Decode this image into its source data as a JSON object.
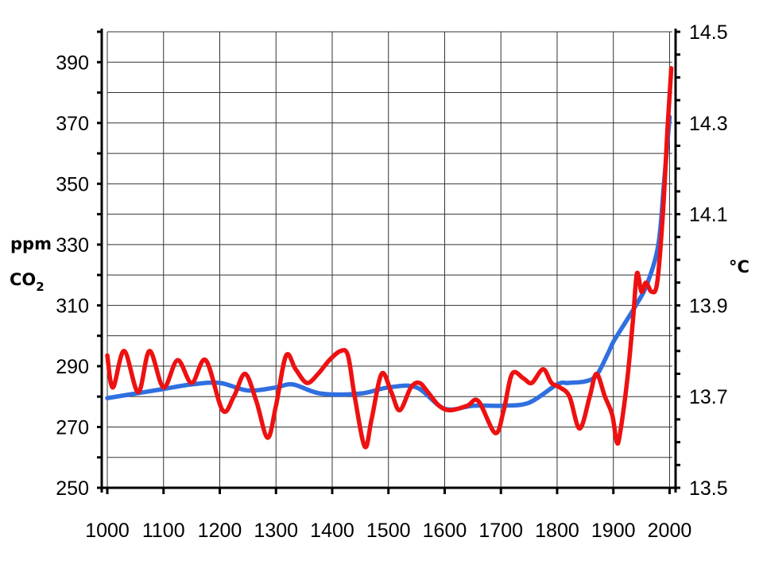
{
  "chart_data": {
    "type": "line",
    "xlabel": "",
    "x_ticks": [
      1000,
      1100,
      1200,
      1300,
      1400,
      1500,
      1600,
      1700,
      1800,
      1900,
      2000
    ],
    "xlim": [
      1000,
      2005
    ],
    "left_axis": {
      "label_line1": "ppm",
      "label_line2_main": "CO",
      "label_line2_sub": "2",
      "ticks": [
        250,
        270,
        290,
        310,
        330,
        350,
        370,
        390
      ],
      "ylim": [
        250,
        400
      ]
    },
    "right_axis": {
      "label": "°C",
      "ticks": [
        13.5,
        13.7,
        13.9,
        14.1,
        14.3,
        14.5
      ],
      "ylim": [
        13.5,
        14.5
      ]
    },
    "grid": true,
    "colors": {
      "co2": "#2f6fe0",
      "temperature": "#ee1111",
      "grid": "#333333",
      "axis": "#000000"
    },
    "series": [
      {
        "key": "co2",
        "axis": "left",
        "points": [
          [
            1000,
            279.5
          ],
          [
            1050,
            281
          ],
          [
            1100,
            282.5
          ],
          [
            1150,
            284
          ],
          [
            1200,
            284.5
          ],
          [
            1250,
            282
          ],
          [
            1300,
            283
          ],
          [
            1330,
            284
          ],
          [
            1380,
            281
          ],
          [
            1450,
            281
          ],
          [
            1500,
            283
          ],
          [
            1550,
            283
          ],
          [
            1600,
            276
          ],
          [
            1650,
            277
          ],
          [
            1700,
            277
          ],
          [
            1750,
            278
          ],
          [
            1800,
            284
          ],
          [
            1820,
            284.5
          ],
          [
            1850,
            285
          ],
          [
            1870,
            287
          ],
          [
            1890,
            294
          ],
          [
            1900,
            298
          ],
          [
            1920,
            304
          ],
          [
            1940,
            310
          ],
          [
            1960,
            317
          ],
          [
            1980,
            330
          ],
          [
            1990,
            350
          ],
          [
            2000,
            372
          ]
        ]
      },
      {
        "key": "temperature",
        "axis": "right",
        "points": [
          [
            1000,
            13.79
          ],
          [
            1010,
            13.72
          ],
          [
            1030,
            13.8
          ],
          [
            1055,
            13.71
          ],
          [
            1075,
            13.8
          ],
          [
            1100,
            13.72
          ],
          [
            1125,
            13.78
          ],
          [
            1150,
            13.73
          ],
          [
            1175,
            13.78
          ],
          [
            1205,
            13.67
          ],
          [
            1225,
            13.7
          ],
          [
            1245,
            13.75
          ],
          [
            1265,
            13.69
          ],
          [
            1285,
            13.61
          ],
          [
            1300,
            13.68
          ],
          [
            1318,
            13.79
          ],
          [
            1335,
            13.76
          ],
          [
            1355,
            13.73
          ],
          [
            1375,
            13.75
          ],
          [
            1395,
            13.78
          ],
          [
            1415,
            13.8
          ],
          [
            1428,
            13.79
          ],
          [
            1440,
            13.7
          ],
          [
            1458,
            13.59
          ],
          [
            1470,
            13.65
          ],
          [
            1488,
            13.75
          ],
          [
            1505,
            13.71
          ],
          [
            1520,
            13.67
          ],
          [
            1540,
            13.72
          ],
          [
            1555,
            13.73
          ],
          [
            1570,
            13.71
          ],
          [
            1590,
            13.68
          ],
          [
            1610,
            13.67
          ],
          [
            1640,
            13.68
          ],
          [
            1660,
            13.69
          ],
          [
            1690,
            13.62
          ],
          [
            1705,
            13.67
          ],
          [
            1720,
            13.75
          ],
          [
            1740,
            13.74
          ],
          [
            1755,
            13.73
          ],
          [
            1775,
            13.76
          ],
          [
            1790,
            13.73
          ],
          [
            1805,
            13.72
          ],
          [
            1822,
            13.7
          ],
          [
            1840,
            13.63
          ],
          [
            1858,
            13.7
          ],
          [
            1870,
            13.75
          ],
          [
            1885,
            13.7
          ],
          [
            1898,
            13.66
          ],
          [
            1906,
            13.6
          ],
          [
            1912,
            13.62
          ],
          [
            1925,
            13.74
          ],
          [
            1935,
            13.87
          ],
          [
            1942,
            13.97
          ],
          [
            1950,
            13.93
          ],
          [
            1958,
            13.95
          ],
          [
            1968,
            13.93
          ],
          [
            1978,
            13.95
          ],
          [
            1988,
            14.1
          ],
          [
            1996,
            14.28
          ],
          [
            2003,
            14.42
          ]
        ]
      }
    ]
  }
}
